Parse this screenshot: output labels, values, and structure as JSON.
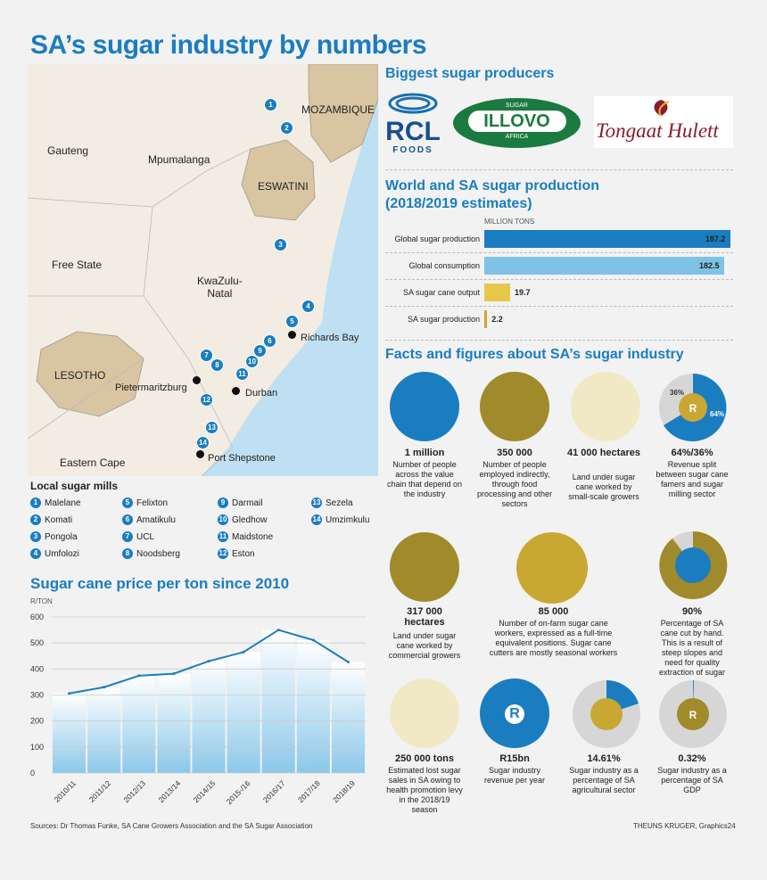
{
  "title": "SA’s sugar industry by numbers",
  "map": {
    "regions": [
      {
        "key": "mozambique",
        "label": "MOZAMBIQUE"
      },
      {
        "key": "gauteng",
        "label": "Gauteng"
      },
      {
        "key": "mpumalanga",
        "label": "Mpumalanga"
      },
      {
        "key": "eswatini",
        "label": "ESWATINI"
      },
      {
        "key": "freestate",
        "label": "Free State"
      },
      {
        "key": "kzn",
        "label": "KwaZulu-\nNatal"
      },
      {
        "key": "lesotho",
        "label": "LESOTHO"
      },
      {
        "key": "easterncape",
        "label": "Eastern Cape"
      }
    ],
    "cities": [
      "Richards Bay",
      "Pietermaritzburg",
      "Durban",
      "Port Shepstone"
    ]
  },
  "mills": {
    "title": "Local sugar mills",
    "items": [
      {
        "n": "1",
        "name": "Malelane"
      },
      {
        "n": "2",
        "name": "Komati"
      },
      {
        "n": "3",
        "name": "Pongola"
      },
      {
        "n": "4",
        "name": "Umfolozi"
      },
      {
        "n": "5",
        "name": "Felixton"
      },
      {
        "n": "6",
        "name": "Amatikulu"
      },
      {
        "n": "7",
        "name": "UCL"
      },
      {
        "n": "8",
        "name": "Noodsberg"
      },
      {
        "n": "9",
        "name": "Darmail"
      },
      {
        "n": "10",
        "name": "Gledhow"
      },
      {
        "n": "11",
        "name": "Maidstone"
      },
      {
        "n": "12",
        "name": "Eston"
      },
      {
        "n": "13",
        "name": "Sezela"
      },
      {
        "n": "14",
        "name": "Umzimkulu"
      }
    ]
  },
  "producers": {
    "title": "Biggest sugar producers",
    "rcl": {
      "top": "RCL",
      "bottom": "FOODS"
    },
    "illovo": {
      "top": "SUGAR",
      "main": "ILLOVO",
      "bottom": "AFRICA"
    },
    "tongaat": "Tongaat Hulett"
  },
  "production": {
    "title1": "World and SA sugar production",
    "title2": "(2018/2019 estimates)",
    "unit": "MILLION TONS"
  },
  "facts": {
    "title": "Facts and figures about SA’s sugar industry",
    "items": [
      {
        "big": "1 million",
        "desc": "Number of people across the value chain that depend on the industry"
      },
      {
        "big": "350 000",
        "desc": "Number of people employed indirectly, through food processing and other sectors"
      },
      {
        "big": "41 000 hectares",
        "desc": "Land under sugar cane worked by small-scale growers"
      },
      {
        "big": "64%/36%",
        "desc": "Revenue split between sugar cane famers and sugar milling sector"
      },
      {
        "big": "317 000 hectares",
        "desc": "Land under sugar cane worked by commercial growers"
      },
      {
        "big": "85 000",
        "desc": "Number of on-farm sugar cane workers, expressed as a full-time equivalent positions. Sugar cane cutters are mostly seasonal workers"
      },
      {
        "big": "90%",
        "desc": "Percentage of SA cane cut by hand. This is a result of steep slopes and need for quality extraction of sugar"
      },
      {
        "big": "250 000 tons",
        "desc": "Estimated lost sugar sales in SA owing to health promotion levy in the 2018/19 season"
      },
      {
        "big": "R15bn",
        "desc": "Sugar industry revenue per year"
      },
      {
        "big": "14.61%",
        "desc": "Sugar industry as a percentage of SA agricultural sector"
      },
      {
        "big": "0.32%",
        "desc": "Sugar industry as a percentage of SA GDP"
      }
    ],
    "pie_labels": {
      "a": "36%",
      "b": "64%"
    },
    "rand": "R"
  },
  "price": {
    "title": "Sugar cane price per ton since 2010",
    "unit": "R/TON"
  },
  "footer": {
    "sources": "Sources: Dr Thomas Funke, SA Cane Growers Association and the SA Sugar Association",
    "credit": "THEUNS KRUGER, Graphics24"
  },
  "colors": {
    "blue": "#1a7dc0",
    "lightblue": "#7ec3e6",
    "gold": "#c9a733",
    "olive": "#a08a2b",
    "tan": "#d9c5a2",
    "grey": "#d6d6d6"
  },
  "chart_data": [
    {
      "type": "bar",
      "title": "World and SA sugar production (2018/2019 estimates)",
      "unit": "MILLION TONS",
      "categories": [
        "Global sugar production",
        "Global consumption",
        "SA sugar cane output",
        "SA sugar production"
      ],
      "values": [
        187.2,
        182.5,
        19.7,
        2.2
      ],
      "labels": [
        "187.2",
        "182.5",
        "19.7",
        "2.2"
      ],
      "colors": [
        "#1a7dc0",
        "#7ec3e6",
        "#e8c64a",
        "#c9a733"
      ],
      "orientation": "horizontal"
    },
    {
      "type": "line",
      "title": "Sugar cane price per ton since 2010",
      "ylabel": "R/TON",
      "x": [
        "2010/11",
        "2011/12",
        "2012/13",
        "2013/14",
        "2014/15",
        "2015-/16",
        "2016/17",
        "2017/18",
        "2018/19"
      ],
      "y": [
        306,
        330,
        374,
        382,
        430,
        465,
        550,
        511,
        427
      ],
      "ylim": [
        0,
        600
      ],
      "yticks": [
        0,
        100,
        200,
        300,
        400,
        500,
        600
      ],
      "grid": true
    }
  ]
}
